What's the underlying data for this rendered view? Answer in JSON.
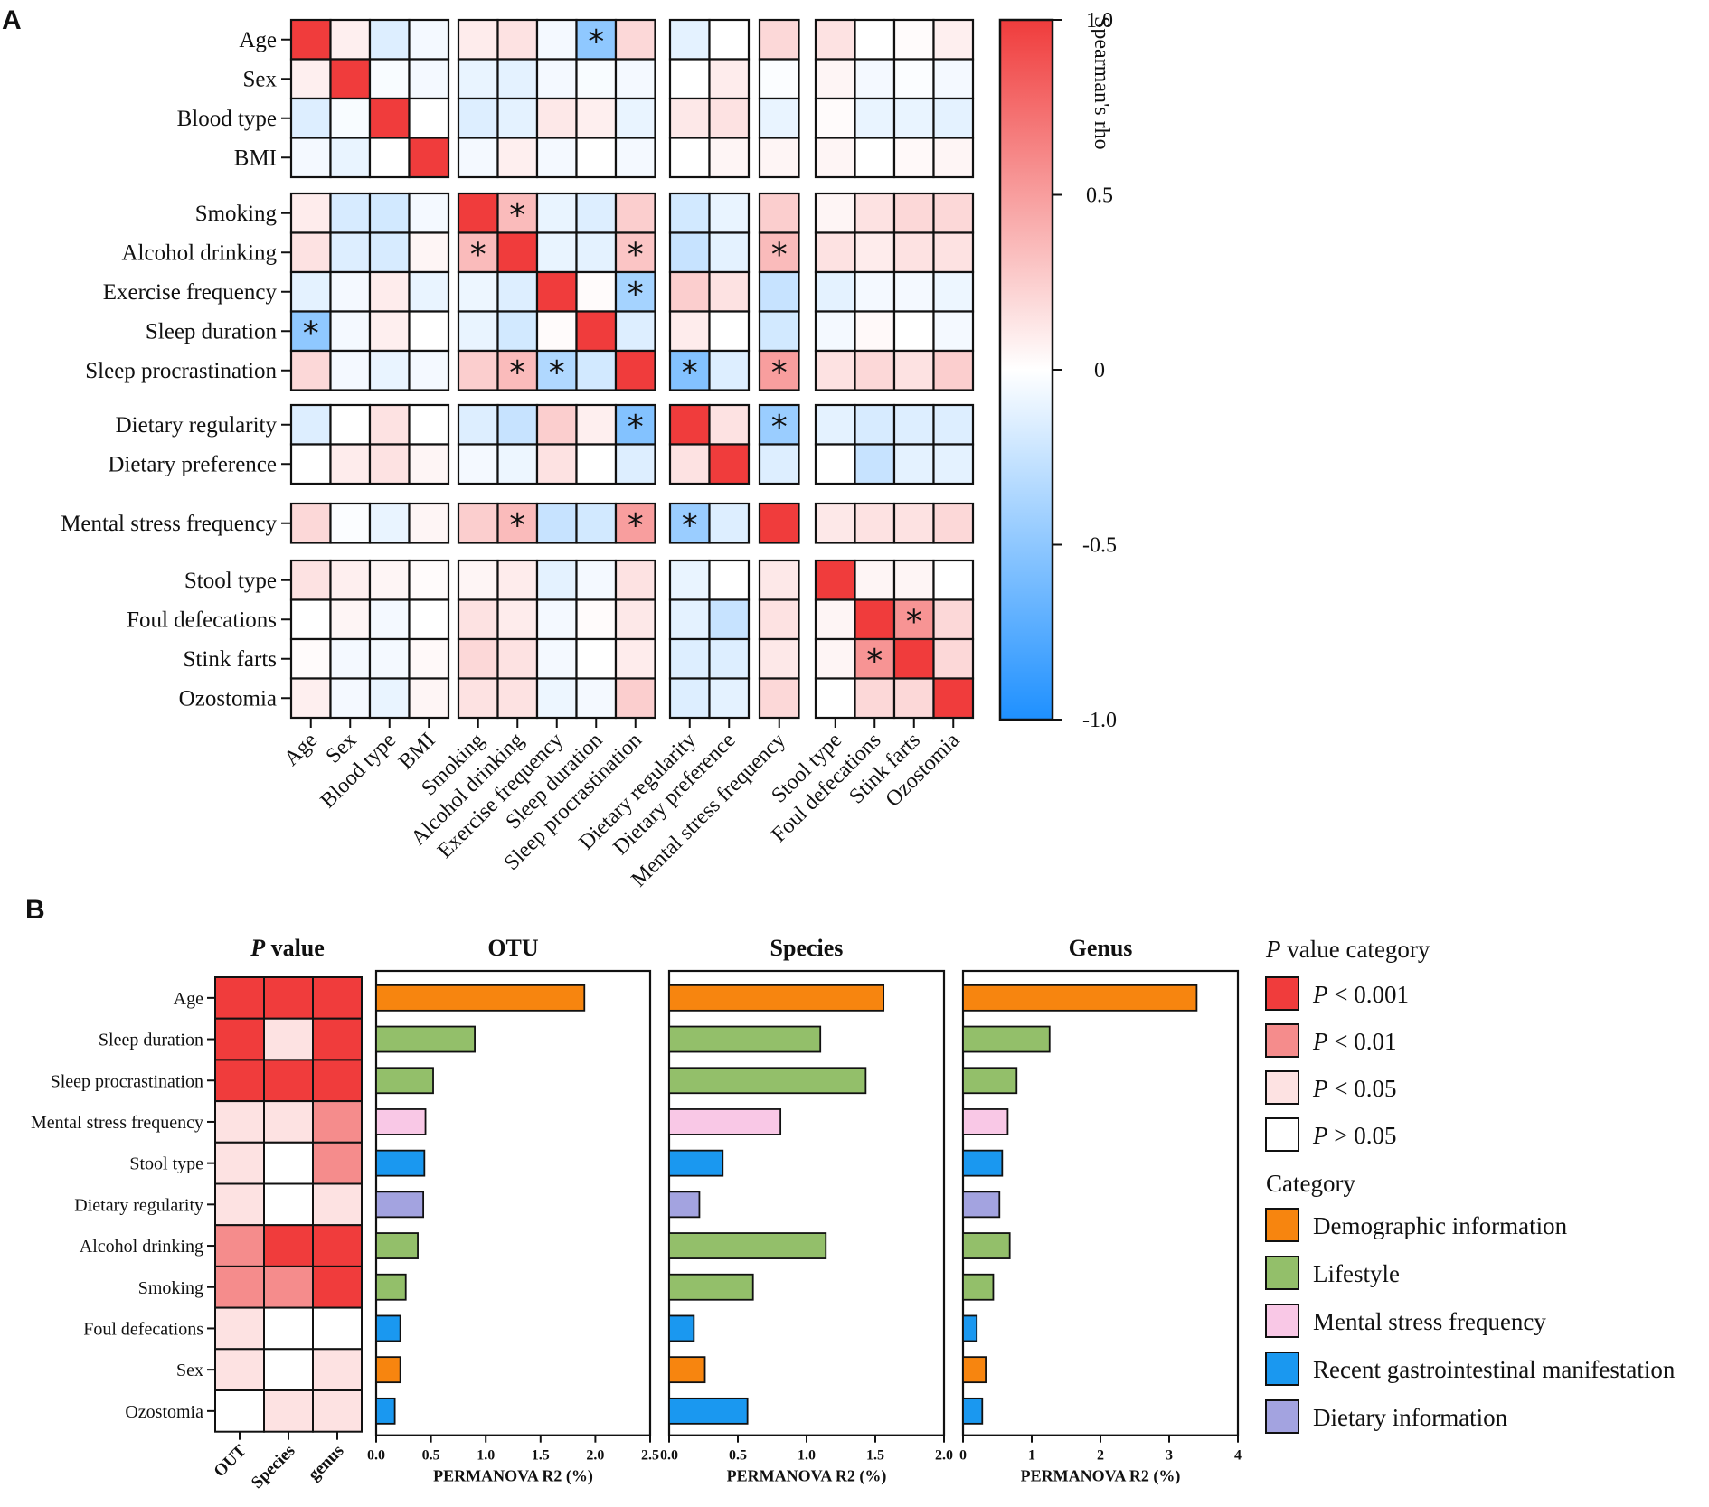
{
  "panel_labels": {
    "a": "A",
    "b": "B"
  },
  "chart_data": [
    {
      "type": "heatmap",
      "panel": "A",
      "title": "",
      "variables": [
        "Age",
        "Sex",
        "Blood type",
        "BMI",
        "Smoking",
        "Alcohol drinking",
        "Exercise frequency",
        "Sleep duration",
        "Sleep procrastination",
        "Dietary regularity",
        "Dietary preference",
        "Mental stress frequency",
        "Stool type",
        "Foul defecations",
        "Stink farts",
        "Ozostomia"
      ],
      "matrix": [
        [
          1.0,
          0.08,
          -0.15,
          -0.05,
          0.1,
          0.15,
          -0.05,
          -0.5,
          0.2,
          -0.12,
          0.0,
          0.2,
          0.15,
          0.0,
          0.02,
          0.08
        ],
        [
          0.08,
          1.0,
          -0.03,
          -0.05,
          -0.1,
          -0.12,
          -0.05,
          -0.03,
          -0.05,
          0.0,
          0.1,
          -0.02,
          0.05,
          -0.05,
          -0.02,
          -0.05
        ],
        [
          -0.15,
          -0.03,
          1.0,
          0.0,
          -0.15,
          -0.12,
          0.12,
          0.08,
          -0.1,
          0.12,
          0.15,
          -0.1,
          0.02,
          -0.1,
          -0.1,
          -0.12
        ],
        [
          -0.05,
          -0.1,
          0.0,
          1.0,
          -0.05,
          0.08,
          -0.05,
          0.0,
          -0.05,
          0.0,
          0.05,
          0.05,
          0.05,
          0.0,
          0.03,
          0.05
        ],
        [
          0.1,
          -0.18,
          -0.2,
          -0.05,
          1.0,
          0.35,
          -0.1,
          -0.15,
          0.25,
          -0.2,
          -0.1,
          0.25,
          0.05,
          0.15,
          0.2,
          0.2
        ],
        [
          0.15,
          -0.15,
          -0.18,
          0.05,
          0.35,
          1.0,
          -0.1,
          -0.12,
          0.3,
          -0.25,
          -0.12,
          0.35,
          0.15,
          0.1,
          0.15,
          0.15
        ],
        [
          -0.12,
          -0.05,
          0.1,
          -0.1,
          -0.08,
          -0.15,
          1.0,
          0.02,
          -0.4,
          0.25,
          0.15,
          -0.25,
          -0.12,
          -0.05,
          -0.05,
          -0.08
        ],
        [
          -0.5,
          -0.05,
          0.08,
          0.0,
          -0.1,
          -0.2,
          0.02,
          1.0,
          -0.15,
          0.1,
          0.0,
          -0.2,
          -0.05,
          0.03,
          0.0,
          -0.05
        ],
        [
          0.2,
          -0.05,
          -0.1,
          -0.05,
          0.25,
          0.35,
          -0.35,
          -0.2,
          1.0,
          -0.55,
          -0.15,
          0.5,
          0.15,
          0.2,
          0.15,
          0.25
        ],
        [
          -0.15,
          0.0,
          0.15,
          0.0,
          -0.15,
          -0.25,
          0.25,
          0.08,
          -0.55,
          1.0,
          0.15,
          -0.45,
          -0.12,
          -0.18,
          -0.15,
          -0.15
        ],
        [
          0.0,
          0.1,
          0.15,
          0.05,
          -0.05,
          -0.08,
          0.15,
          0.0,
          -0.15,
          0.15,
          1.0,
          -0.15,
          0.0,
          -0.25,
          -0.12,
          -0.12
        ],
        [
          0.2,
          -0.02,
          -0.1,
          0.05,
          0.25,
          0.35,
          -0.25,
          -0.2,
          0.5,
          -0.45,
          -0.15,
          1.0,
          0.12,
          0.15,
          0.15,
          0.2
        ],
        [
          0.15,
          0.08,
          0.05,
          0.02,
          0.05,
          0.1,
          -0.12,
          -0.05,
          0.15,
          -0.1,
          0.0,
          0.12,
          1.0,
          0.05,
          0.05,
          0.0
        ],
        [
          0.0,
          0.05,
          -0.05,
          0.0,
          0.15,
          0.1,
          -0.05,
          0.02,
          0.12,
          -0.12,
          -0.25,
          0.15,
          0.05,
          1.0,
          0.55,
          0.2
        ],
        [
          0.02,
          -0.05,
          -0.05,
          0.03,
          0.2,
          0.15,
          -0.05,
          0.0,
          0.1,
          -0.15,
          -0.15,
          0.12,
          0.05,
          0.55,
          1.0,
          0.2
        ],
        [
          0.08,
          -0.05,
          -0.1,
          0.05,
          0.15,
          0.15,
          -0.08,
          -0.05,
          0.25,
          -0.15,
          -0.12,
          0.2,
          0.0,
          0.2,
          0.2,
          1.0
        ]
      ],
      "significant": [
        [
          0,
          7
        ],
        [
          4,
          5
        ],
        [
          5,
          4
        ],
        [
          5,
          8
        ],
        [
          5,
          11
        ],
        [
          6,
          8
        ],
        [
          7,
          0
        ],
        [
          8,
          5
        ],
        [
          8,
          6
        ],
        [
          8,
          9
        ],
        [
          8,
          11
        ],
        [
          9,
          8
        ],
        [
          9,
          11
        ],
        [
          11,
          5
        ],
        [
          11,
          8
        ],
        [
          11,
          9
        ],
        [
          13,
          14
        ],
        [
          14,
          13
        ]
      ],
      "significance_marker": "*",
      "colorbar": {
        "label": "Spearman's rho",
        "range": [
          -1.0,
          1.0
        ],
        "ticks": [
          "1.0",
          "0.5",
          "0",
          "-0.5",
          "-1.0"
        ],
        "low_color": "#1e90ff",
        "mid_color": "#ffffff",
        "high_color": "#f03c3c"
      }
    },
    {
      "type": "heatmap",
      "panel": "B",
      "title": "P value",
      "title_prefix": "P",
      "title_suffix": " value",
      "columns": [
        "OUT",
        "Species",
        "genus"
      ],
      "rows": [
        "Age",
        "Sleep duration",
        "Sleep procrastination",
        "Mental stress frequency",
        "Stool type",
        "Dietary regularity",
        "Alcohol drinking",
        "Smoking",
        "Foul defecations",
        "Sex",
        "Ozostomia"
      ],
      "categories_matrix": [
        [
          "P < 0.001",
          "P < 0.001",
          "P < 0.001"
        ],
        [
          "P < 0.001",
          "P < 0.05",
          "P < 0.001"
        ],
        [
          "P < 0.001",
          "P < 0.001",
          "P < 0.001"
        ],
        [
          "P < 0.05",
          "P < 0.05",
          "P < 0.01"
        ],
        [
          "P < 0.05",
          "P > 0.05",
          "P < 0.01"
        ],
        [
          "P < 0.05",
          "P > 0.05",
          "P < 0.05"
        ],
        [
          "P < 0.01",
          "P < 0.001",
          "P < 0.001"
        ],
        [
          "P < 0.01",
          "P < 0.01",
          "P < 0.001"
        ],
        [
          "P < 0.05",
          "P > 0.05",
          "P > 0.05"
        ],
        [
          "P < 0.05",
          "P > 0.05",
          "P < 0.05"
        ],
        [
          "P > 0.05",
          "P < 0.05",
          "P < 0.05"
        ]
      ]
    },
    {
      "type": "bar",
      "panel": "B",
      "orientation": "horizontal",
      "title": "OTU",
      "xlabel": "PERMANOVA R2 (%)",
      "xlim": [
        0,
        2.5
      ],
      "xticks": [
        "0.0",
        "0.5",
        "1.0",
        "1.5",
        "2.0",
        "2.5"
      ],
      "categories": [
        "Age",
        "Sleep duration",
        "Sleep procrastination",
        "Mental stress frequency",
        "Stool type",
        "Dietary regularity",
        "Alcohol drinking",
        "Smoking",
        "Foul defecations",
        "Sex",
        "Ozostomia"
      ],
      "values": [
        1.9,
        0.9,
        0.52,
        0.45,
        0.44,
        0.43,
        0.38,
        0.27,
        0.22,
        0.22,
        0.17
      ],
      "bar_categories": [
        "Demographic information",
        "Lifestyle",
        "Lifestyle",
        "Mental stress frequency",
        "Recent gastrointestinal manifestation",
        "Dietary information",
        "Lifestyle",
        "Lifestyle",
        "Recent gastrointestinal manifestation",
        "Demographic information",
        "Recent gastrointestinal manifestation"
      ]
    },
    {
      "type": "bar",
      "panel": "B",
      "orientation": "horizontal",
      "title": "Species",
      "xlabel": "PERMANOVA R2 (%)",
      "xlim": [
        0,
        2.0
      ],
      "xticks": [
        "0.0",
        "0.5",
        "1.0",
        "1.5",
        "2.0"
      ],
      "categories": [
        "Age",
        "Sleep duration",
        "Sleep procrastination",
        "Mental stress frequency",
        "Stool type",
        "Dietary regularity",
        "Alcohol drinking",
        "Smoking",
        "Foul defecations",
        "Sex",
        "Ozostomia"
      ],
      "values": [
        1.56,
        1.1,
        1.43,
        0.81,
        0.39,
        0.22,
        1.14,
        0.61,
        0.18,
        0.26,
        0.57
      ],
      "bar_categories": [
        "Demographic information",
        "Lifestyle",
        "Lifestyle",
        "Mental stress frequency",
        "Recent gastrointestinal manifestation",
        "Dietary information",
        "Lifestyle",
        "Lifestyle",
        "Recent gastrointestinal manifestation",
        "Demographic information",
        "Recent gastrointestinal manifestation"
      ]
    },
    {
      "type": "bar",
      "panel": "B",
      "orientation": "horizontal",
      "title": "Genus",
      "xlabel": "PERMANOVA R2 (%)",
      "xlim": [
        0,
        4
      ],
      "xticks": [
        "0",
        "1",
        "2",
        "3",
        "4"
      ],
      "categories": [
        "Age",
        "Sleep duration",
        "Sleep procrastination",
        "Mental stress frequency",
        "Stool type",
        "Dietary regularity",
        "Alcohol drinking",
        "Smoking",
        "Foul defecations",
        "Sex",
        "Ozostomia"
      ],
      "values": [
        3.4,
        1.26,
        0.78,
        0.65,
        0.57,
        0.53,
        0.68,
        0.44,
        0.2,
        0.33,
        0.28
      ],
      "bar_categories": [
        "Demographic information",
        "Lifestyle",
        "Lifestyle",
        "Mental stress frequency",
        "Recent gastrointestinal manifestation",
        "Dietary information",
        "Lifestyle",
        "Lifestyle",
        "Recent gastrointestinal manifestation",
        "Demographic information",
        "Recent gastrointestinal manifestation"
      ]
    }
  ],
  "legend": {
    "pvalue_title": "P value category",
    "pvalue_title_prefix": "P",
    "pvalue_title_suffix": " value category",
    "pvalue_items": [
      {
        "prefix": "P",
        "text": " < 0.001",
        "key": "P < 0.001",
        "color": "#f03c3c"
      },
      {
        "prefix": "P",
        "text": " < 0.01",
        "key": "P < 0.01",
        "color": "#f58c8c"
      },
      {
        "prefix": "P",
        "text": " < 0.05",
        "key": "P < 0.05",
        "color": "#fde2e2"
      },
      {
        "prefix": "P",
        "text": " > 0.05",
        "key": "P > 0.05",
        "color": "#ffffff"
      }
    ],
    "category_title": "Category",
    "category_items": [
      {
        "label": "Demographic information",
        "color": "#f7850f"
      },
      {
        "label": "Lifestyle",
        "color": "#93bf6a"
      },
      {
        "label": "Mental stress frequency",
        "color": "#f9c8e6"
      },
      {
        "label": "Recent gastrointestinal manifestation",
        "color": "#1a98f0"
      },
      {
        "label": "Dietary information",
        "color": "#a3a3e0"
      }
    ]
  }
}
